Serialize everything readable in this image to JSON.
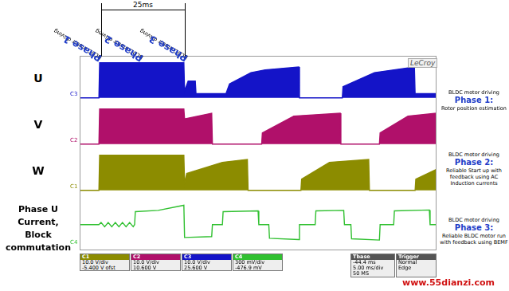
{
  "chart_data": [
    {
      "type": "line",
      "title": "U",
      "grid": false,
      "tick_labels": false,
      "x": [
        0,
        2.7,
        2.8,
        14.6,
        14.7,
        15.2,
        16.2,
        16.3,
        20.5,
        21,
        24,
        26,
        30.7,
        30.8,
        36.8,
        36.9,
        41.3,
        46.9,
        47,
        50
      ],
      "series": [
        {
          "name": "C3",
          "color": "#1414c8",
          "values": [
            0,
            0,
            25,
            25,
            5,
            12,
            12,
            3,
            3,
            10,
            18,
            20,
            22,
            0,
            0,
            8,
            18,
            22,
            3,
            3
          ]
        }
      ],
      "xlim": [
        0,
        50
      ],
      "ylim": [
        -3,
        30
      ]
    },
    {
      "type": "line",
      "title": "V",
      "grid": false,
      "tick_labels": false,
      "x": [
        0,
        2.7,
        2.8,
        14.6,
        14.7,
        18.5,
        18.6,
        25.5,
        25.6,
        30,
        36.5,
        36.6,
        42,
        42.1,
        46,
        50
      ],
      "series": [
        {
          "name": "C2",
          "color": "#b0106a",
          "values": [
            0,
            0,
            25,
            25,
            18,
            22,
            0,
            0,
            8,
            20,
            22,
            0,
            0,
            8,
            20,
            22
          ]
        }
      ],
      "xlim": [
        0,
        50
      ],
      "ylim": [
        -3,
        30
      ]
    },
    {
      "type": "line",
      "title": "W",
      "grid": false,
      "tick_labels": false,
      "x": [
        0,
        2.7,
        2.8,
        14.6,
        14.7,
        15,
        20,
        23.5,
        23.6,
        31,
        31.1,
        35,
        40.5,
        40.6,
        47,
        47.1,
        50
      ],
      "series": [
        {
          "name": "C1",
          "color": "#8c8c00",
          "values": [
            0,
            0,
            25,
            25,
            5,
            12,
            20,
            22,
            0,
            0,
            8,
            20,
            22,
            0,
            0,
            8,
            15
          ]
        }
      ],
      "xlim": [
        0,
        50
      ],
      "ylim": [
        -3,
        30
      ]
    },
    {
      "type": "line",
      "title": "Phase U Current, Block commutation",
      "grid": false,
      "tick_labels": false,
      "x": [
        0,
        2.7,
        3,
        3.5,
        4,
        4.5,
        5,
        5.5,
        6,
        6.5,
        7,
        7.5,
        7.7,
        7.8,
        11,
        14.6,
        14.7,
        18.5,
        18.6,
        20,
        20.1,
        25,
        25.1,
        26.5,
        26.6,
        30.7,
        30.8,
        33,
        33.1,
        37,
        37.1,
        38,
        38.1,
        42,
        42.1,
        44,
        44.1,
        49,
        49.1,
        50
      ],
      "series": [
        {
          "name": "C4",
          "color": "#30c030",
          "values": [
            0,
            0,
            50,
            -50,
            50,
            -50,
            50,
            -50,
            50,
            -50,
            50,
            -50,
            0,
            300,
            330,
            450,
            -300,
            -280,
            0,
            0,
            300,
            320,
            0,
            0,
            -320,
            -350,
            0,
            0,
            320,
            330,
            0,
            0,
            -330,
            -360,
            0,
            0,
            320,
            340,
            0,
            0
          ]
        }
      ],
      "xlim": [
        0,
        50
      ],
      "ylim": [
        -600,
        700
      ]
    }
  ],
  "header": {
    "span": "25ms",
    "phases": [
      {
        "line1": "BLDC motor driving",
        "line2": "Phase 1"
      },
      {
        "line1": "BLDC motor driving",
        "line2": "Phase 2"
      },
      {
        "line1": "BLDC motor driving",
        "line2": "Phase 3"
      }
    ]
  },
  "descriptions": [
    {
      "line1": "BLDC motor driving",
      "line2": "Phase 1:",
      "text": "Rotor position estimation"
    },
    {
      "line1": "BLDC motor driving",
      "line2": "Phase 2:",
      "text": "Reliable Start up with feedback using AC Induction currents"
    },
    {
      "line1": "BLDC motor driving",
      "line2": "Phase 3:",
      "text": "Reliable BLDC motor run with feedback using BEMF"
    }
  ],
  "scope": {
    "logo": "LeCroy",
    "channels": [
      {
        "id": "C1",
        "lines": [
          "10.0 V/div",
          "-5.400 V ofst"
        ]
      },
      {
        "id": "C2",
        "lines": [
          "10.0 V/div",
          "10.600 V"
        ]
      },
      {
        "id": "C3",
        "lines": [
          "10.0 V/div",
          "25.600 V"
        ]
      },
      {
        "id": "C4",
        "lines": [
          "300 mV/div",
          "-476.9 mV"
        ]
      }
    ],
    "timebase": {
      "id": "Tbase",
      "lines": [
        "-44.4 ms",
        "5.00 ms/div",
        "50 MS"
      ]
    },
    "trigger": {
      "id": "Trigger",
      "lines": [
        "Normal",
        "Edge"
      ]
    }
  },
  "watermark": "www.55dianzi.com"
}
